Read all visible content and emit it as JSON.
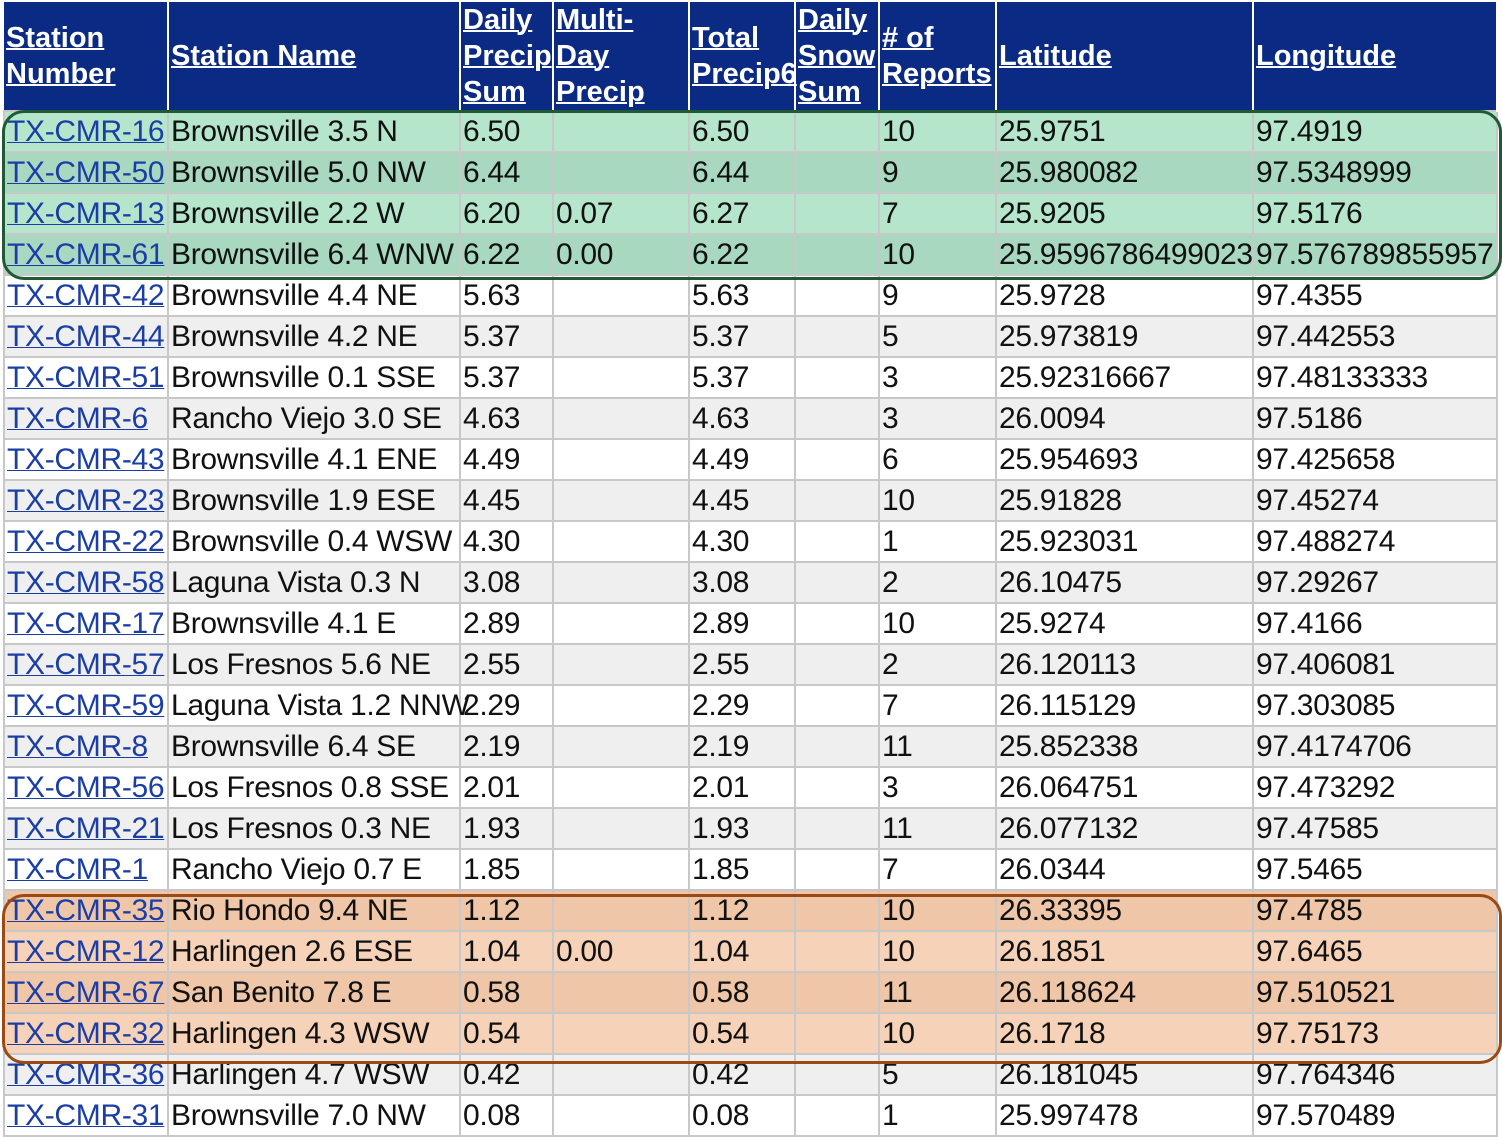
{
  "columns": [
    {
      "lines": [
        "Station",
        "Number"
      ]
    },
    {
      "lines": [
        "Station Name"
      ]
    },
    {
      "lines": [
        "Daily",
        "Precip",
        "Sum"
      ]
    },
    {
      "lines": [
        "Multi-Day",
        "Precip"
      ]
    },
    {
      "lines": [
        "Total",
        "Precip6"
      ]
    },
    {
      "lines": [
        "Daily",
        "Snow",
        "Sum"
      ]
    },
    {
      "lines": [
        "# of",
        "Reports"
      ]
    },
    {
      "lines": [
        "Latitude"
      ]
    },
    {
      "lines": [
        "Longitude"
      ]
    }
  ],
  "rows": [
    {
      "station": "TX-CMR-16",
      "name": "Brownsville 3.5 N",
      "daily": "6.50",
      "multi": "",
      "total": "6.50",
      "snow": "",
      "reports": "10",
      "lat": "25.9751",
      "lon": "97.4919",
      "group": "green"
    },
    {
      "station": "TX-CMR-50",
      "name": "Brownsville 5.0 NW",
      "daily": "6.44",
      "multi": "",
      "total": "6.44",
      "snow": "",
      "reports": "9",
      "lat": "25.980082",
      "lon": "97.5348999",
      "group": "green"
    },
    {
      "station": "TX-CMR-13",
      "name": "Brownsville 2.2 W",
      "daily": "6.20",
      "multi": "0.07",
      "total": "6.27",
      "snow": "",
      "reports": "7",
      "lat": "25.9205",
      "lon": "97.5176",
      "group": "green"
    },
    {
      "station": "TX-CMR-61",
      "name": "Brownsville 6.4 WNW",
      "daily": "6.22",
      "multi": "0.00",
      "total": "6.22",
      "snow": "",
      "reports": "10",
      "lat": "25.9596786499023",
      "lon": "97.576789855957",
      "group": "green"
    },
    {
      "station": "TX-CMR-42",
      "name": "Brownsville 4.4 NE",
      "daily": "5.63",
      "multi": "",
      "total": "5.63",
      "snow": "",
      "reports": "9",
      "lat": "25.9728",
      "lon": "97.4355",
      "group": ""
    },
    {
      "station": "TX-CMR-44",
      "name": "Brownsville 4.2 NE",
      "daily": "5.37",
      "multi": "",
      "total": "5.37",
      "snow": "",
      "reports": "5",
      "lat": "25.973819",
      "lon": "97.442553",
      "group": ""
    },
    {
      "station": "TX-CMR-51",
      "name": "Brownsville 0.1 SSE",
      "daily": "5.37",
      "multi": "",
      "total": "5.37",
      "snow": "",
      "reports": "3",
      "lat": "25.92316667",
      "lon": "97.48133333",
      "group": ""
    },
    {
      "station": "TX-CMR-6",
      "name": "Rancho Viejo 3.0 SE",
      "daily": "4.63",
      "multi": "",
      "total": "4.63",
      "snow": "",
      "reports": "3",
      "lat": "26.0094",
      "lon": "97.5186",
      "group": ""
    },
    {
      "station": "TX-CMR-43",
      "name": "Brownsville 4.1 ENE",
      "daily": "4.49",
      "multi": "",
      "total": "4.49",
      "snow": "",
      "reports": "6",
      "lat": "25.954693",
      "lon": "97.425658",
      "group": ""
    },
    {
      "station": "TX-CMR-23",
      "name": "Brownsville 1.9 ESE",
      "daily": "4.45",
      "multi": "",
      "total": "4.45",
      "snow": "",
      "reports": "10",
      "lat": "25.91828",
      "lon": "97.45274",
      "group": ""
    },
    {
      "station": "TX-CMR-22",
      "name": "Brownsville 0.4 WSW",
      "daily": "4.30",
      "multi": "",
      "total": "4.30",
      "snow": "",
      "reports": "1",
      "lat": "25.923031",
      "lon": "97.488274",
      "group": ""
    },
    {
      "station": "TX-CMR-58",
      "name": "Laguna Vista 0.3 N",
      "daily": "3.08",
      "multi": "",
      "total": "3.08",
      "snow": "",
      "reports": "2",
      "lat": "26.10475",
      "lon": "97.29267",
      "group": ""
    },
    {
      "station": "TX-CMR-17",
      "name": "Brownsville 4.1 E",
      "daily": "2.89",
      "multi": "",
      "total": "2.89",
      "snow": "",
      "reports": "10",
      "lat": "25.9274",
      "lon": "97.4166",
      "group": ""
    },
    {
      "station": "TX-CMR-57",
      "name": "Los Fresnos 5.6 NE",
      "daily": "2.55",
      "multi": "",
      "total": "2.55",
      "snow": "",
      "reports": "2",
      "lat": "26.120113",
      "lon": "97.406081",
      "group": ""
    },
    {
      "station": "TX-CMR-59",
      "name": "Laguna Vista 1.2 NNW",
      "daily": "2.29",
      "multi": "",
      "total": "2.29",
      "snow": "",
      "reports": "7",
      "lat": "26.115129",
      "lon": "97.303085",
      "group": ""
    },
    {
      "station": "TX-CMR-8",
      "name": "Brownsville 6.4 SE",
      "daily": "2.19",
      "multi": "",
      "total": "2.19",
      "snow": "",
      "reports": "11",
      "lat": "25.852338",
      "lon": "97.4174706",
      "group": ""
    },
    {
      "station": "TX-CMR-56",
      "name": "Los Fresnos 0.8 SSE",
      "daily": "2.01",
      "multi": "",
      "total": "2.01",
      "snow": "",
      "reports": "3",
      "lat": "26.064751",
      "lon": "97.473292",
      "group": ""
    },
    {
      "station": "TX-CMR-21",
      "name": "Los Fresnos 0.3 NE",
      "daily": "1.93",
      "multi": "",
      "total": "1.93",
      "snow": "",
      "reports": "11",
      "lat": "26.077132",
      "lon": "97.47585",
      "group": ""
    },
    {
      "station": "TX-CMR-1",
      "name": "Rancho Viejo 0.7 E",
      "daily": "1.85",
      "multi": "",
      "total": "1.85",
      "snow": "",
      "reports": "7",
      "lat": "26.0344",
      "lon": "97.5465",
      "group": ""
    },
    {
      "station": "TX-CMR-35",
      "name": "Rio Hondo 9.4 NE",
      "daily": "1.12",
      "multi": "",
      "total": "1.12",
      "snow": "",
      "reports": "10",
      "lat": "26.33395",
      "lon": "97.4785",
      "group": "orange"
    },
    {
      "station": "TX-CMR-12",
      "name": "Harlingen 2.6 ESE",
      "daily": "1.04",
      "multi": "0.00",
      "total": "1.04",
      "snow": "",
      "reports": "10",
      "lat": "26.1851",
      "lon": "97.6465",
      "group": "orange"
    },
    {
      "station": "TX-CMR-67",
      "name": "San Benito 7.8 E",
      "daily": "0.58",
      "multi": "",
      "total": "0.58",
      "snow": "",
      "reports": "11",
      "lat": "26.118624",
      "lon": "97.510521",
      "group": "orange"
    },
    {
      "station": "TX-CMR-32",
      "name": "Harlingen 4.3 WSW",
      "daily": "0.54",
      "multi": "",
      "total": "0.54",
      "snow": "",
      "reports": "10",
      "lat": "26.1718",
      "lon": "97.75173",
      "group": "orange"
    },
    {
      "station": "TX-CMR-36",
      "name": "Harlingen 4.7 WSW",
      "daily": "0.42",
      "multi": "",
      "total": "0.42",
      "snow": "",
      "reports": "5",
      "lat": "26.181045",
      "lon": "97.764346",
      "group": ""
    },
    {
      "station": "TX-CMR-31",
      "name": "Brownsville 7.0 NW",
      "daily": "0.08",
      "multi": "",
      "total": "0.08",
      "snow": "",
      "reports": "1",
      "lat": "25.997478",
      "lon": "97.570489",
      "group": ""
    }
  ],
  "colors": {
    "header_bg": "#0b2a83",
    "header_text": "#ffffff",
    "link": "#1a3ea6",
    "green_highlight": "#b5e6cb",
    "green_border": "#1f5a34",
    "orange_highlight": "#f6d3b8",
    "orange_border": "#9a4a12"
  }
}
